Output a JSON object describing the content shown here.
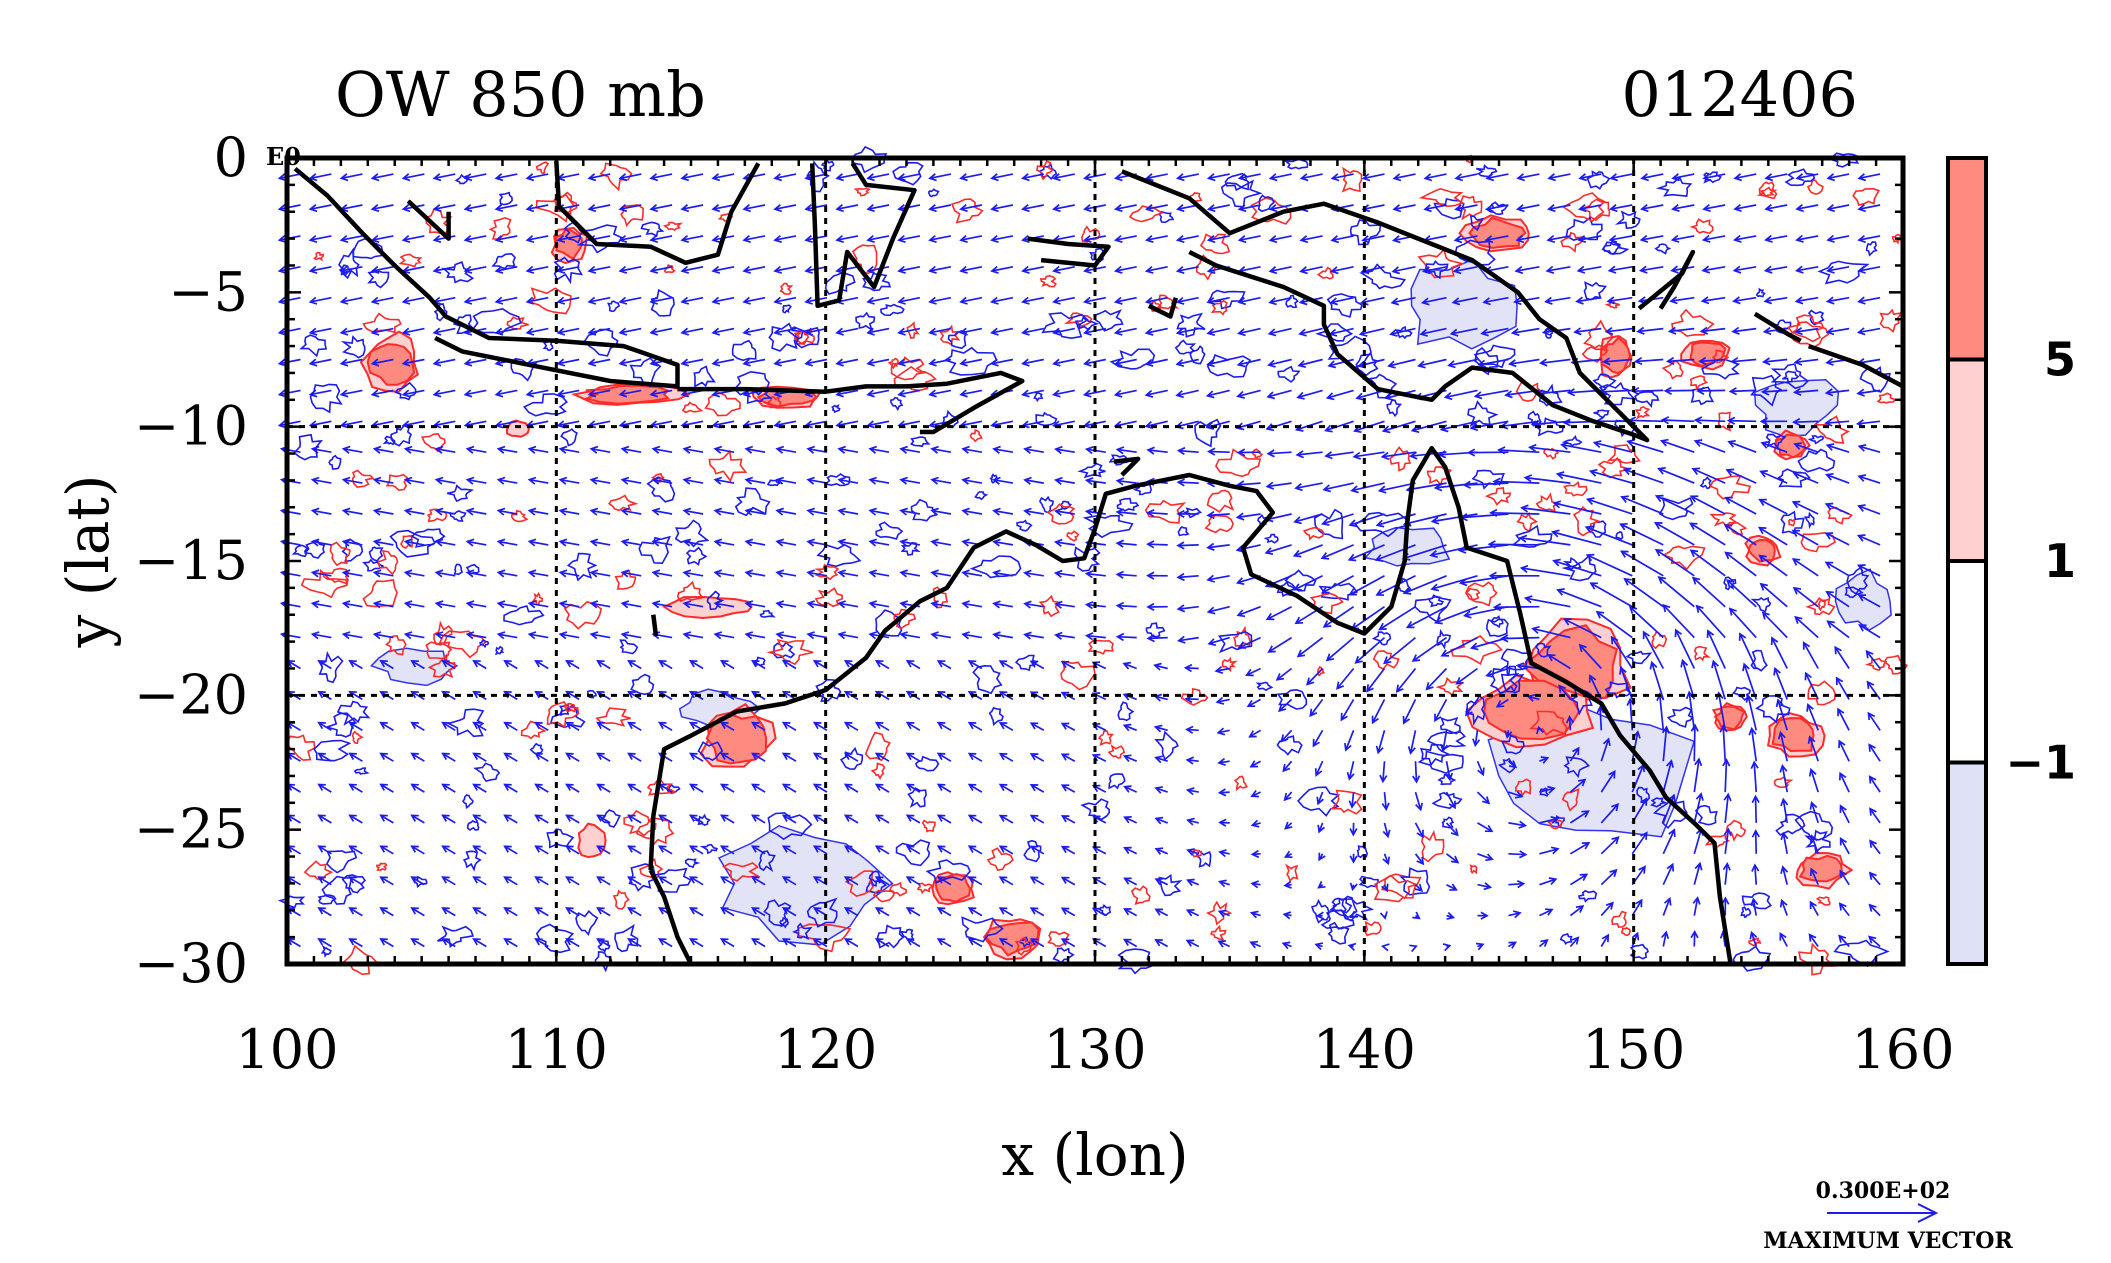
{
  "chart_data": {
    "type": "contour",
    "title": "OW 850 mb",
    "time_label": "012406",
    "corner_label": "E0",
    "xlabel": "x (lon)",
    "ylabel": "y (lat)",
    "xlim": [
      100,
      160
    ],
    "ylim": [
      -30,
      0
    ],
    "xticks": [
      100,
      110,
      120,
      130,
      140,
      150,
      160
    ],
    "yticks": [
      0,
      -5,
      -10,
      -15,
      -20,
      -25,
      -30
    ],
    "ytick_labels": [
      "0",
      "−5",
      "−10",
      "−15",
      "−20",
      "−25",
      "−30"
    ],
    "gridlines_x": [
      110,
      120,
      130,
      140,
      150
    ],
    "gridlines_y": [
      -10,
      -20
    ],
    "colorbar": {
      "levels": [
        5,
        1,
        -1
      ],
      "level_labels": [
        "5",
        "1",
        "−1"
      ],
      "colors": [
        "#ff8a80",
        "#ffd0d0",
        "#ffffff",
        "#dfe1f7"
      ]
    },
    "vector_legend": {
      "value": "0.300E+02",
      "label": "MAXIMUM VECTOR"
    },
    "colors": {
      "positive_contour": "#ff2a2a",
      "negative_contour": "#1c1cf0",
      "coastline": "#000000",
      "vectors": "#1c1cf0"
    },
    "positive_regions": [
      {
        "lon": 147.8,
        "lat": -18.9,
        "rlon": 1.6,
        "rlat": 1.3
      },
      {
        "lon": 146.2,
        "lat": -20.6,
        "rlon": 1.8,
        "rlat": 1.0
      },
      {
        "lon": 116.7,
        "lat": -21.6,
        "rlon": 1.0,
        "rlat": 0.9
      },
      {
        "lon": 103.9,
        "lat": -7.6,
        "rlon": 0.8,
        "rlat": 0.8
      },
      {
        "lon": 149.3,
        "lat": -7.4,
        "rlon": 0.5,
        "rlat": 0.6
      },
      {
        "lon": 152.7,
        "lat": -7.3,
        "rlon": 0.7,
        "rlat": 0.4
      },
      {
        "lon": 156.0,
        "lat": -21.5,
        "rlon": 0.8,
        "rlat": 0.6
      },
      {
        "lon": 157.0,
        "lat": -26.5,
        "rlon": 0.8,
        "rlat": 0.5
      },
      {
        "lon": 127.0,
        "lat": -29.0,
        "rlon": 0.9,
        "rlat": 0.6
      },
      {
        "lon": 124.7,
        "lat": -27.2,
        "rlon": 0.6,
        "rlat": 0.5
      },
      {
        "lon": 110.5,
        "lat": -3.2,
        "rlon": 0.5,
        "rlat": 0.5
      },
      {
        "lon": 145.0,
        "lat": -2.8,
        "rlon": 1.0,
        "rlat": 0.5
      },
      {
        "lon": 153.6,
        "lat": -20.8,
        "rlon": 0.5,
        "rlat": 0.4
      },
      {
        "lon": 155.8,
        "lat": -10.7,
        "rlon": 0.5,
        "rlat": 0.4
      },
      {
        "lon": 154.8,
        "lat": -14.6,
        "rlon": 0.5,
        "rlat": 0.4
      },
      {
        "lon": 112.7,
        "lat": -8.8,
        "rlon": 1.5,
        "rlat": 0.3
      },
      {
        "lon": 118.5,
        "lat": -8.9,
        "rlon": 1.0,
        "rlat": 0.3
      }
    ],
    "light_positive_regions": [
      {
        "lon": 115.8,
        "lat": -16.7,
        "rlon": 1.5,
        "rlat": 0.4
      },
      {
        "lon": 111.3,
        "lat": -25.4,
        "rlon": 0.5,
        "rlat": 0.6
      },
      {
        "lon": 108.6,
        "lat": -10.1,
        "rlon": 0.4,
        "rlat": 0.3
      }
    ],
    "negative_regions": [
      {
        "lon": 104.8,
        "lat": -18.9,
        "rlon": 1.4,
        "rlat": 0.6
      },
      {
        "lon": 156.0,
        "lat": -9.2,
        "rlon": 1.5,
        "rlat": 1.0
      },
      {
        "lon": 148.5,
        "lat": -23.0,
        "rlon": 3.5,
        "rlat": 2.5
      },
      {
        "lon": 119.0,
        "lat": -27.0,
        "rlon": 3.0,
        "rlat": 2.0
      },
      {
        "lon": 141.5,
        "lat": -14.5,
        "rlon": 1.5,
        "rlat": 0.8
      },
      {
        "lon": 158.5,
        "lat": -16.5,
        "rlon": 1.0,
        "rlat": 1.0
      },
      {
        "lon": 116.0,
        "lat": -20.5,
        "rlon": 1.3,
        "rlat": 0.6
      },
      {
        "lon": 143.5,
        "lat": -5.5,
        "rlon": 2.0,
        "rlat": 1.5
      }
    ],
    "coastlines": [
      [
        [
          100.3,
          -0.4
        ],
        [
          101.5,
          -1.4
        ],
        [
          102.8,
          -2.8
        ],
        [
          104.0,
          -4.0
        ],
        [
          105.3,
          -5.2
        ],
        [
          105.9,
          -5.9
        ],
        [
          107.5,
          -6.7
        ],
        [
          110.0,
          -6.8
        ],
        [
          112.5,
          -7.0
        ],
        [
          114.5,
          -7.7
        ],
        [
          114.5,
          -8.5
        ],
        [
          112.0,
          -8.3
        ],
        [
          109.0,
          -7.7
        ],
        [
          106.5,
          -7.2
        ],
        [
          105.5,
          -6.7
        ]
      ],
      [
        [
          114.5,
          -8.6
        ],
        [
          117.0,
          -8.6
        ],
        [
          120.0,
          -8.7
        ],
        [
          121.5,
          -8.5
        ],
        [
          123.0,
          -8.5
        ],
        [
          124.5,
          -8.4
        ],
        [
          126.5,
          -8.0
        ],
        [
          127.3,
          -8.3
        ],
        [
          125.5,
          -9.3
        ],
        [
          124.0,
          -10.2
        ],
        [
          123.5,
          -10.2
        ]
      ],
      [
        [
          110.0,
          -0.1
        ],
        [
          110.1,
          -1.8
        ],
        [
          111.5,
          -3.2
        ],
        [
          113.5,
          -3.3
        ],
        [
          114.8,
          -3.9
        ],
        [
          116.0,
          -3.6
        ],
        [
          116.5,
          -2.0
        ],
        [
          117.5,
          -0.2
        ]
      ],
      [
        [
          119.5,
          -0.2
        ],
        [
          119.6,
          -2.5
        ],
        [
          119.7,
          -5.5
        ],
        [
          120.5,
          -5.3
        ],
        [
          120.8,
          -3.5
        ],
        [
          121.8,
          -4.8
        ],
        [
          122.5,
          -3.0
        ],
        [
          123.3,
          -1.2
        ],
        [
          121.5,
          -1.0
        ],
        [
          121.0,
          -0.2
        ]
      ],
      [
        [
          127.5,
          -3.0
        ],
        [
          129.0,
          -3.2
        ],
        [
          130.5,
          -3.3
        ],
        [
          130.0,
          -4.0
        ],
        [
          128.0,
          -3.8
        ]
      ],
      [
        [
          131.0,
          -0.5
        ],
        [
          133.5,
          -1.5
        ],
        [
          135.0,
          -2.8
        ],
        [
          137.0,
          -2.0
        ],
        [
          138.5,
          -1.7
        ],
        [
          140.5,
          -2.4
        ],
        [
          142.0,
          -3.0
        ],
        [
          144.0,
          -3.8
        ],
        [
          145.7,
          -5.0
        ],
        [
          146.5,
          -6.0
        ],
        [
          147.5,
          -6.7
        ],
        [
          148.0,
          -8.0
        ],
        [
          149.5,
          -9.5
        ],
        [
          150.5,
          -10.5
        ],
        [
          150.0,
          -10.3
        ],
        [
          148.5,
          -9.8
        ],
        [
          147.0,
          -9.2
        ],
        [
          145.5,
          -8.0
        ],
        [
          144.0,
          -7.8
        ],
        [
          143.0,
          -8.5
        ],
        [
          142.5,
          -9.0
        ],
        [
          140.5,
          -8.6
        ],
        [
          139.0,
          -7.3
        ],
        [
          138.5,
          -6.2
        ],
        [
          138.5,
          -5.5
        ],
        [
          137.0,
          -4.8
        ],
        [
          134.5,
          -4.0
        ],
        [
          133.5,
          -3.5
        ]
      ],
      [
        [
          150.2,
          -5.6
        ],
        [
          151.8,
          -4.3
        ],
        [
          152.2,
          -3.5
        ],
        [
          151.5,
          -4.8
        ],
        [
          151.0,
          -5.6
        ]
      ],
      [
        [
          154.5,
          -5.8
        ],
        [
          155.8,
          -6.6
        ],
        [
          156.2,
          -6.8
        ]
      ],
      [
        [
          156.5,
          -7.0
        ],
        [
          158.5,
          -7.7
        ],
        [
          160.0,
          -8.5
        ]
      ],
      [
        [
          113.5,
          -26.5
        ],
        [
          113.6,
          -24.5
        ],
        [
          114.0,
          -22.0
        ],
        [
          115.0,
          -21.5
        ],
        [
          116.7,
          -20.6
        ],
        [
          118.5,
          -20.3
        ],
        [
          120.0,
          -19.8
        ],
        [
          121.5,
          -18.6
        ],
        [
          122.2,
          -17.6
        ],
        [
          123.5,
          -16.5
        ],
        [
          124.5,
          -16.0
        ],
        [
          125.5,
          -14.5
        ],
        [
          126.7,
          -13.9
        ],
        [
          127.8,
          -14.4
        ],
        [
          128.8,
          -15.0
        ],
        [
          129.6,
          -14.9
        ],
        [
          130.0,
          -13.8
        ],
        [
          130.4,
          -12.5
        ],
        [
          131.5,
          -12.2
        ],
        [
          132.5,
          -12.0
        ],
        [
          133.5,
          -11.8
        ],
        [
          135.0,
          -12.2
        ],
        [
          136.0,
          -12.4
        ],
        [
          136.6,
          -13.2
        ],
        [
          135.5,
          -14.5
        ],
        [
          135.8,
          -15.5
        ],
        [
          137.5,
          -16.3
        ],
        [
          139.0,
          -17.3
        ],
        [
          140.0,
          -17.7
        ],
        [
          141.0,
          -16.7
        ],
        [
          141.5,
          -15.0
        ],
        [
          141.6,
          -13.5
        ],
        [
          141.8,
          -12.0
        ],
        [
          142.5,
          -10.8
        ],
        [
          143.0,
          -11.5
        ],
        [
          143.5,
          -13.0
        ],
        [
          143.8,
          -14.5
        ],
        [
          145.3,
          -15.0
        ],
        [
          145.8,
          -17.0
        ],
        [
          146.2,
          -18.8
        ],
        [
          147.5,
          -19.5
        ],
        [
          148.8,
          -20.3
        ],
        [
          149.5,
          -21.5
        ],
        [
          150.6,
          -22.8
        ],
        [
          151.2,
          -23.8
        ],
        [
          152.3,
          -24.8
        ],
        [
          153.0,
          -25.5
        ],
        [
          153.2,
          -27.5
        ],
        [
          153.6,
          -30.0
        ]
      ],
      [
        [
          113.5,
          -26.5
        ],
        [
          114.0,
          -27.5
        ],
        [
          114.5,
          -29.0
        ],
        [
          115.0,
          -30.0
        ]
      ],
      [
        [
          113.6,
          -17.0
        ],
        [
          113.7,
          -17.8
        ]
      ],
      [
        [
          130.7,
          -11.3
        ],
        [
          131.6,
          -11.2
        ],
        [
          131.0,
          -11.8
        ]
      ],
      [
        [
          132.0,
          -5.5
        ],
        [
          132.8,
          -5.9
        ],
        [
          133.0,
          -5.2
        ]
      ],
      [
        [
          104.5,
          -1.6
        ],
        [
          106.0,
          -3.0
        ],
        [
          106.0,
          -2.0
        ]
      ]
    ]
  }
}
